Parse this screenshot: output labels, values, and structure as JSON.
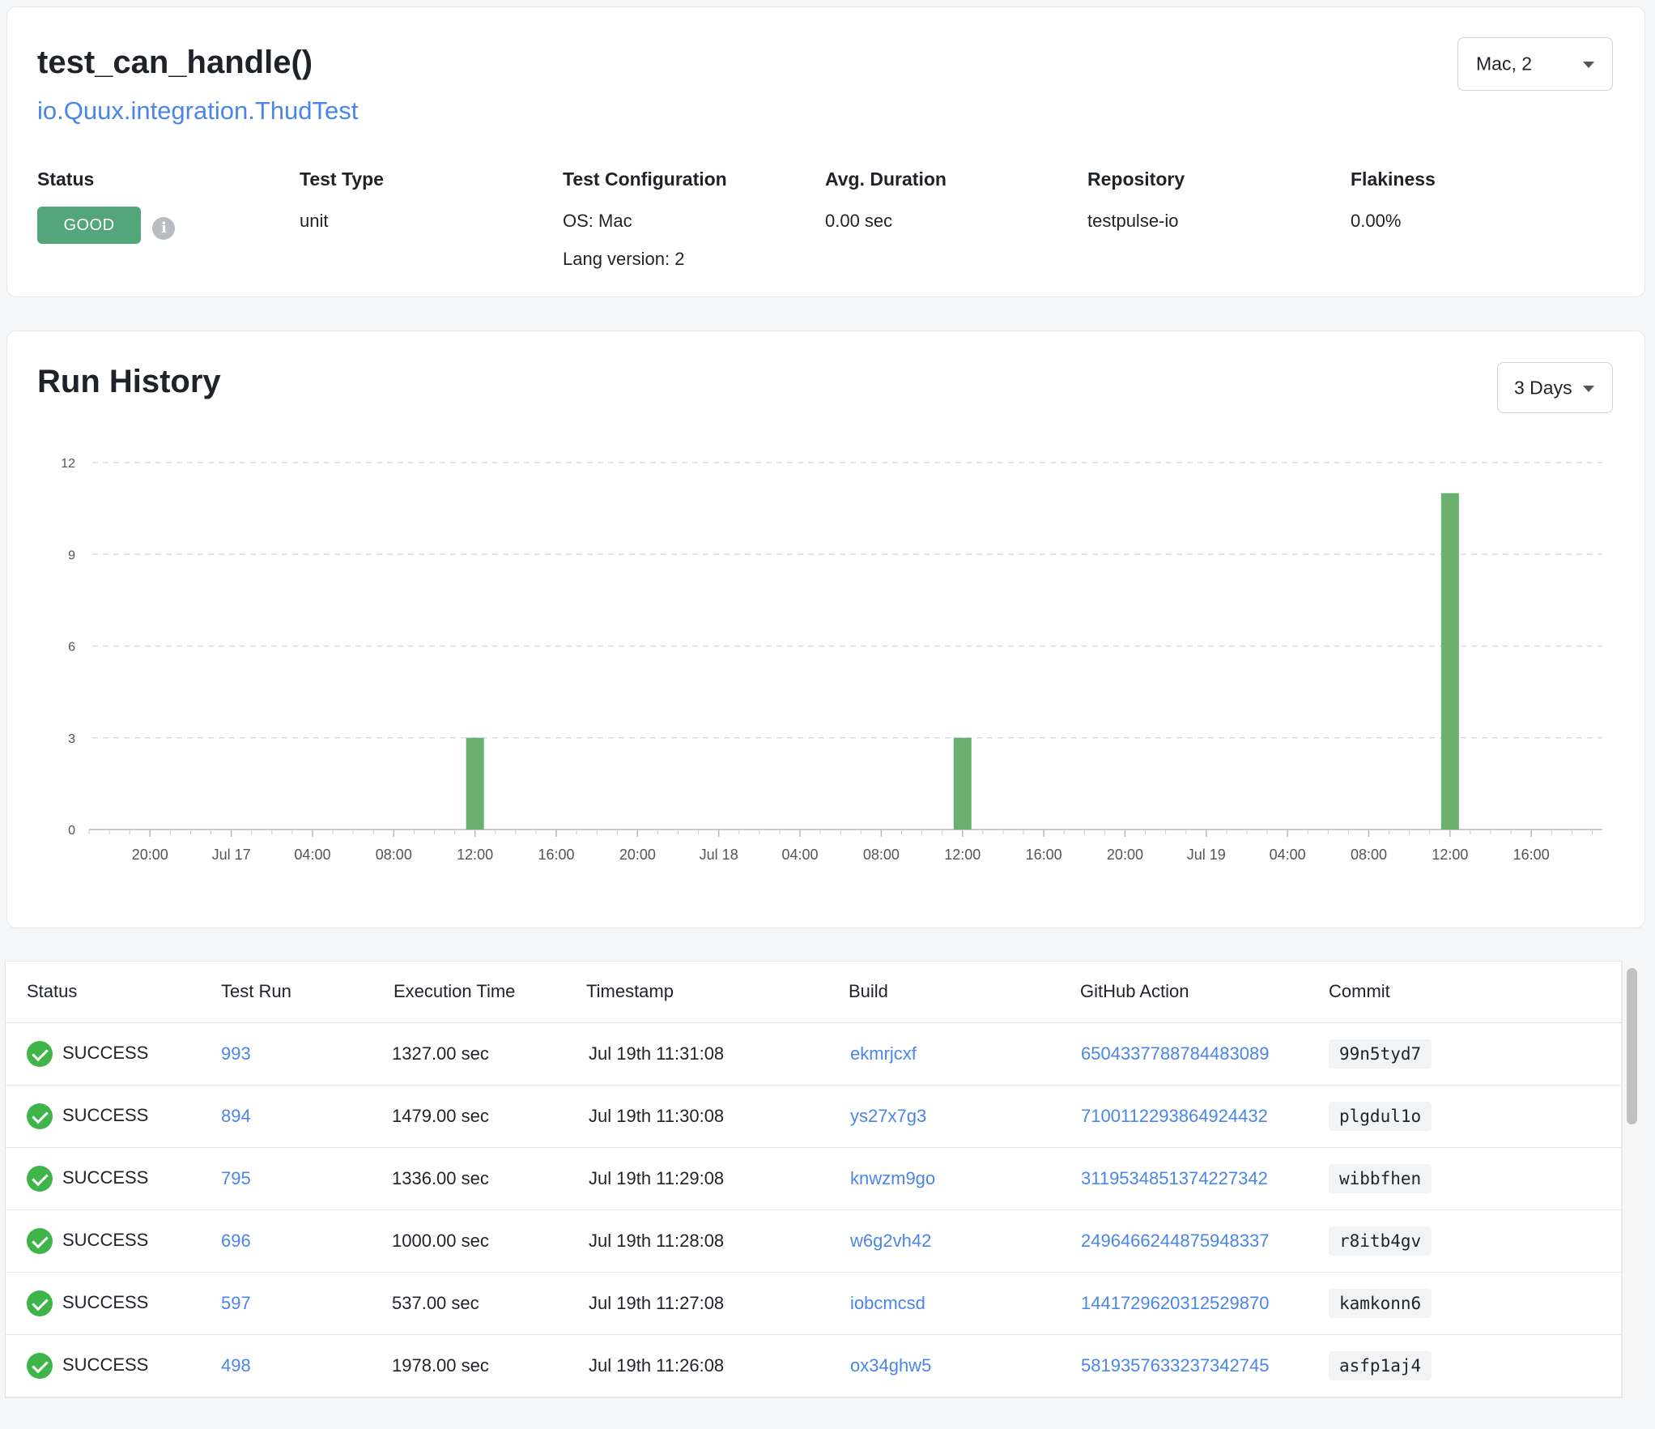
{
  "header": {
    "title": "test_can_handle()",
    "class_name": "io.Quux.integration.ThudTest",
    "config_select": "Mac, 2"
  },
  "meta": {
    "status": {
      "label": "Status",
      "value": "GOOD"
    },
    "test_type": {
      "label": "Test Type",
      "value": "unit"
    },
    "config": {
      "label": "Test Configuration",
      "os": "OS: Mac",
      "lang": "Lang version: 2"
    },
    "duration": {
      "label": "Avg. Duration",
      "value": "0.00 sec"
    },
    "repository": {
      "label": "Repository",
      "value": "testpulse-io"
    },
    "flakiness": {
      "label": "Flakiness",
      "value": "0.00%"
    }
  },
  "colors": {
    "accent": "#4a86e8",
    "good": "#55a57a",
    "bar": "#6ab06e",
    "success": "#3fb549"
  },
  "history": {
    "title": "Run History",
    "range_select": "3 Days"
  },
  "chart_data": {
    "type": "bar",
    "title": "Run History",
    "xlabel": "",
    "ylabel": "",
    "ylim": [
      0,
      12
    ],
    "yticks": [
      "0",
      "3",
      "6",
      "9",
      "12"
    ],
    "xticks": [
      "20:00",
      "Jul 17",
      "04:00",
      "08:00",
      "12:00",
      "16:00",
      "20:00",
      "Jul 18",
      "04:00",
      "08:00",
      "12:00",
      "16:00",
      "20:00",
      "Jul 19",
      "04:00",
      "08:00",
      "12:00",
      "16:00"
    ],
    "x_hours_start": 17,
    "x_hours_end": 91.5,
    "bars": [
      {
        "x": "Jul 17 12:00",
        "x_hours": 36,
        "value": 3
      },
      {
        "x": "Jul 18 12:00",
        "x_hours": 60,
        "value": 3
      },
      {
        "x": "Jul 19 12:00",
        "x_hours": 84,
        "value": 11
      }
    ],
    "grid": true
  },
  "table": {
    "columns": [
      "Status",
      "Test Run",
      "Execution Time",
      "Timestamp",
      "Build",
      "GitHub Action",
      "Commit"
    ],
    "rows": [
      {
        "status": "SUCCESS",
        "run": "993",
        "exec": "1327.00 sec",
        "ts": "Jul 19th 11:31:08",
        "build": "ekmrjcxf",
        "action": "6504337788784483089",
        "commit": "99n5tyd7"
      },
      {
        "status": "SUCCESS",
        "run": "894",
        "exec": "1479.00 sec",
        "ts": "Jul 19th 11:30:08",
        "build": "ys27x7g3",
        "action": "7100112293864924432",
        "commit": "plgdul1o"
      },
      {
        "status": "SUCCESS",
        "run": "795",
        "exec": "1336.00 sec",
        "ts": "Jul 19th 11:29:08",
        "build": "knwzm9go",
        "action": "3119534851374227342",
        "commit": "wibbfhen"
      },
      {
        "status": "SUCCESS",
        "run": "696",
        "exec": "1000.00 sec",
        "ts": "Jul 19th 11:28:08",
        "build": "w6g2vh42",
        "action": "2496466244875948337",
        "commit": "r8itb4gv"
      },
      {
        "status": "SUCCESS",
        "run": "597",
        "exec": "537.00 sec",
        "ts": "Jul 19th 11:27:08",
        "build": "iobcmcsd",
        "action": "1441729620312529870",
        "commit": "kamkonn6"
      },
      {
        "status": "SUCCESS",
        "run": "498",
        "exec": "1978.00 sec",
        "ts": "Jul 19th 11:26:08",
        "build": "ox34ghw5",
        "action": "5819357633237342745",
        "commit": "asfp1aj4"
      }
    ]
  }
}
